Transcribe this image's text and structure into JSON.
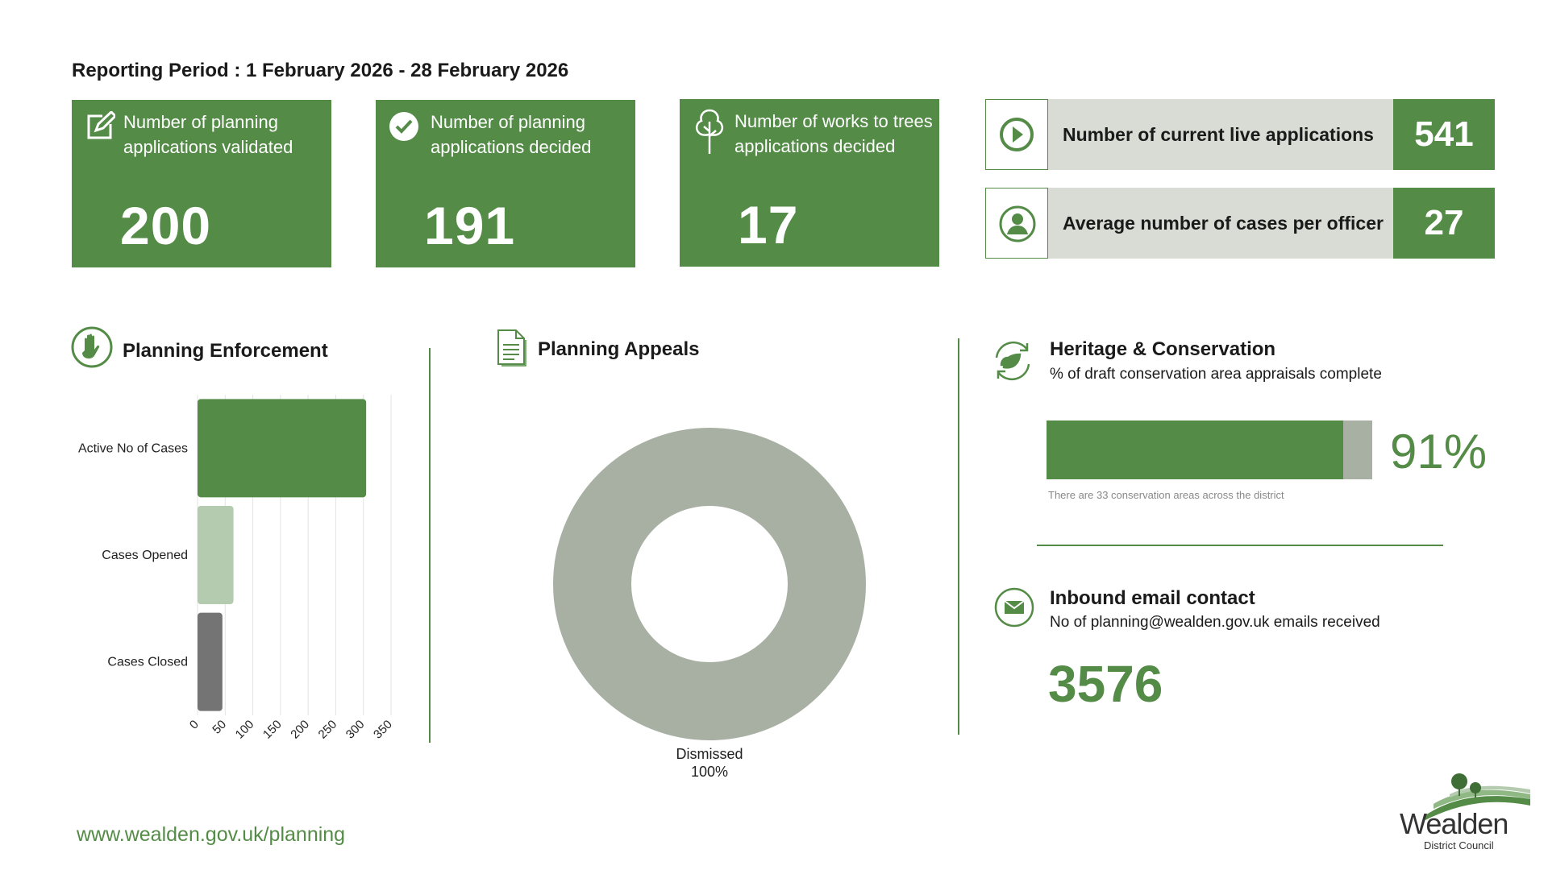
{
  "reporting_period": "Reporting Period : 1 February 2026 - 28 February 2026",
  "kpis": [
    {
      "label": "Number of planning applications validated",
      "value": "200",
      "icon": "edit-square-icon"
    },
    {
      "label": "Number of planning applications decided",
      "value": "191",
      "icon": "check-circle-icon"
    },
    {
      "label": "Number of works to trees applications decided",
      "value": "17",
      "icon": "tree-icon"
    }
  ],
  "stats": [
    {
      "label": "Number of current live applications",
      "value": "541",
      "icon": "play-circle-icon"
    },
    {
      "label": "Average number of cases per officer",
      "value": "27",
      "icon": "user-circle-icon"
    }
  ],
  "enforcement": {
    "title": "Planning Enforcement",
    "icon": "hand-stop-icon"
  },
  "appeals": {
    "title": "Planning Appeals",
    "icon": "document-icon"
  },
  "heritage": {
    "title": "Heritage & Conservation",
    "subtitle": "% of draft conservation area appraisals complete",
    "percent_label": "91%",
    "percent": 91,
    "note": "There are 33 conservation areas across the district",
    "icon": "leaf-recycle-icon"
  },
  "email": {
    "title": "Inbound email contact",
    "subtitle": "No of planning@wealden.gov.uk emails received",
    "value": "3576",
    "icon": "envelope-icon"
  },
  "footer": {
    "url": "www.wealden.gov.uk/planning",
    "logo_name": "Wealden",
    "logo_sub": "District Council"
  },
  "colors": {
    "green": "#548c47",
    "light_green": "#b5cbb0",
    "grey": "#a8b0a4",
    "dark_grey": "#747474",
    "panel": "#d9dcd4"
  },
  "chart_data": [
    {
      "type": "bar",
      "orientation": "horizontal",
      "categories": [
        "Active No of Cases",
        "Cases Opened",
        "Cases Closed"
      ],
      "values": [
        305,
        65,
        45
      ],
      "colors": [
        "#548c47",
        "#b5cbb0",
        "#747474"
      ],
      "xticks": [
        "0",
        "50",
        "100",
        "150",
        "200",
        "250",
        "300",
        "350"
      ],
      "xlim": [
        0,
        350
      ],
      "grid": true
    },
    {
      "type": "pie",
      "style": "donut",
      "labels": [
        "Dismissed"
      ],
      "values": [
        100
      ],
      "value_labels": [
        "100%"
      ],
      "colors": [
        "#a8b0a4"
      ]
    }
  ]
}
